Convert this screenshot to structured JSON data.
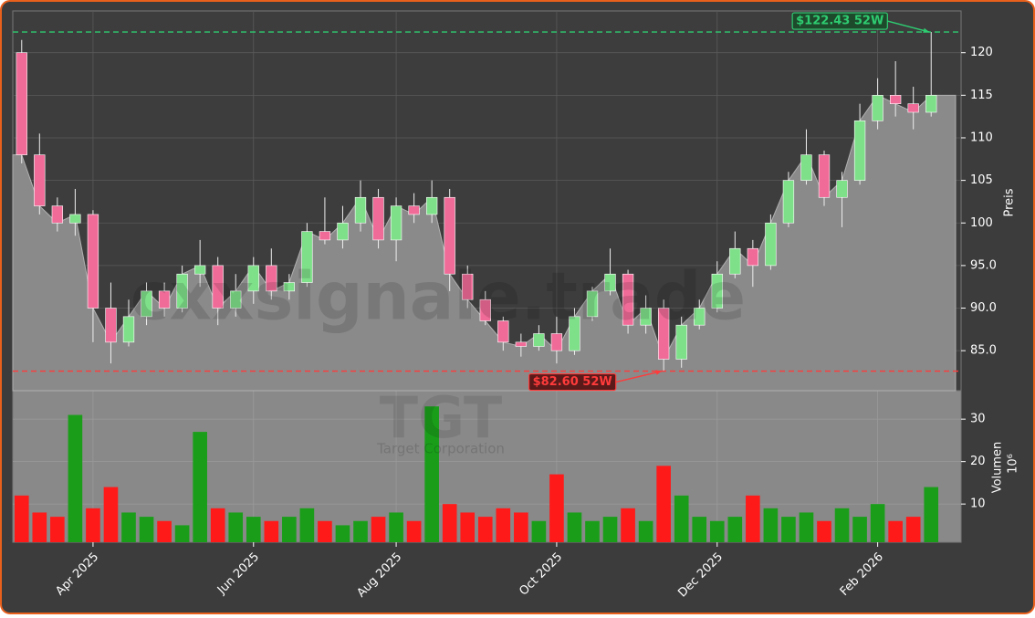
{
  "chart_data": [
    {
      "type": "candlestick",
      "y_label": "Preis",
      "watermark": "cxxsignale.trade",
      "ylim": [
        80.3,
        124.9
      ],
      "yticks": [
        {
          "value": 85,
          "label": "85.0"
        },
        {
          "value": 90,
          "label": "90.0"
        },
        {
          "value": 95,
          "label": "95.0"
        },
        100,
        105,
        110,
        115,
        120
      ],
      "grid": true,
      "up_color": "#7fe08a",
      "down_color": "#f06b98",
      "area_color": "#8a8a8a",
      "open": [
        120,
        108,
        102,
        100,
        101,
        90,
        86,
        89,
        92,
        90,
        94,
        95,
        90,
        92,
        95,
        92,
        93,
        99,
        98,
        100,
        103,
        98,
        102,
        101,
        103,
        94,
        91,
        88.5,
        86,
        85.5,
        87,
        85,
        89,
        92,
        94,
        88,
        90,
        84,
        88,
        90,
        94,
        97,
        95,
        100,
        105,
        108,
        103,
        105,
        112,
        115,
        114,
        113
      ],
      "high": [
        121.5,
        110.5,
        103,
        104,
        101.5,
        93,
        91,
        93,
        93,
        95,
        98,
        96,
        94,
        96,
        97,
        94,
        100,
        103,
        102,
        105,
        104,
        103,
        103.5,
        105,
        104,
        95,
        92,
        89,
        87,
        88,
        89,
        90,
        92.5,
        97,
        94.5,
        91.5,
        91,
        89,
        91,
        95.5,
        99,
        98,
        101,
        106,
        111,
        108.5,
        106,
        114,
        117,
        119,
        116,
        122.43
      ],
      "low": [
        107,
        101,
        99,
        98.5,
        86,
        83.5,
        85.5,
        88,
        89,
        89.5,
        92.5,
        88,
        89,
        90.5,
        91,
        91,
        92.5,
        97.5,
        97,
        99,
        97,
        95.5,
        100,
        100,
        92,
        90,
        88,
        85,
        84.3,
        85,
        83.5,
        84.5,
        88.5,
        91.5,
        87,
        87,
        82.6,
        83,
        87.5,
        89.5,
        93.5,
        92.5,
        94.5,
        99.5,
        104.5,
        102,
        99.5,
        104.5,
        111,
        112.5,
        111,
        112.5
      ],
      "close": [
        108,
        102,
        100,
        101,
        90,
        86,
        89,
        92,
        90,
        94,
        95,
        90,
        92,
        95,
        92,
        93,
        99,
        98,
        100,
        103,
        98,
        102,
        101,
        103,
        94,
        91,
        88.5,
        86,
        85.5,
        87,
        85,
        89,
        92,
        94,
        88,
        90,
        84,
        88,
        90,
        94,
        97,
        95,
        100,
        105,
        108,
        103,
        105,
        112,
        115,
        114,
        113,
        115
      ],
      "annotations": [
        {
          "label": "$122.43 52W",
          "value": 122.43,
          "color": "#2ecc71",
          "bg": "#1e4a2c"
        },
        {
          "label": "$82.60 52W",
          "value": 82.6,
          "color": "#ff3b3b",
          "bg": "#5a1a1a"
        }
      ]
    },
    {
      "type": "bar",
      "y_label": "Volumen",
      "y_exponent": "10⁶",
      "watermark": "TGT",
      "watermark_sub": "Target Corporation",
      "categories": [
        null,
        null,
        null,
        null,
        "Apr 2025",
        null,
        null,
        null,
        null,
        null,
        null,
        null,
        null,
        "Jun 2025",
        null,
        null,
        null,
        null,
        null,
        null,
        null,
        "Aug 2025",
        null,
        null,
        null,
        null,
        null,
        null,
        null,
        null,
        "Oct 2025",
        null,
        null,
        null,
        null,
        null,
        null,
        null,
        null,
        "Dec 2025",
        null,
        null,
        null,
        null,
        null,
        null,
        null,
        null,
        "Feb 2026",
        null,
        null,
        null
      ],
      "values": [
        12,
        8,
        7,
        31,
        9,
        14,
        8,
        7,
        6,
        5,
        27,
        9,
        8,
        7,
        6,
        7,
        9,
        6,
        5,
        6,
        7,
        8,
        6,
        33,
        10,
        8,
        7,
        9,
        8,
        6,
        17,
        8,
        6,
        7,
        9,
        6,
        19,
        12,
        7,
        6,
        7,
        12,
        9,
        7,
        8,
        6,
        9,
        7,
        10,
        6,
        7,
        14
      ],
      "ylim": [
        1,
        36.7
      ],
      "yticks": [
        10,
        20,
        30
      ],
      "grid": true,
      "up_color": "#1a9e1a",
      "down_color": "#ff1a1a"
    }
  ]
}
